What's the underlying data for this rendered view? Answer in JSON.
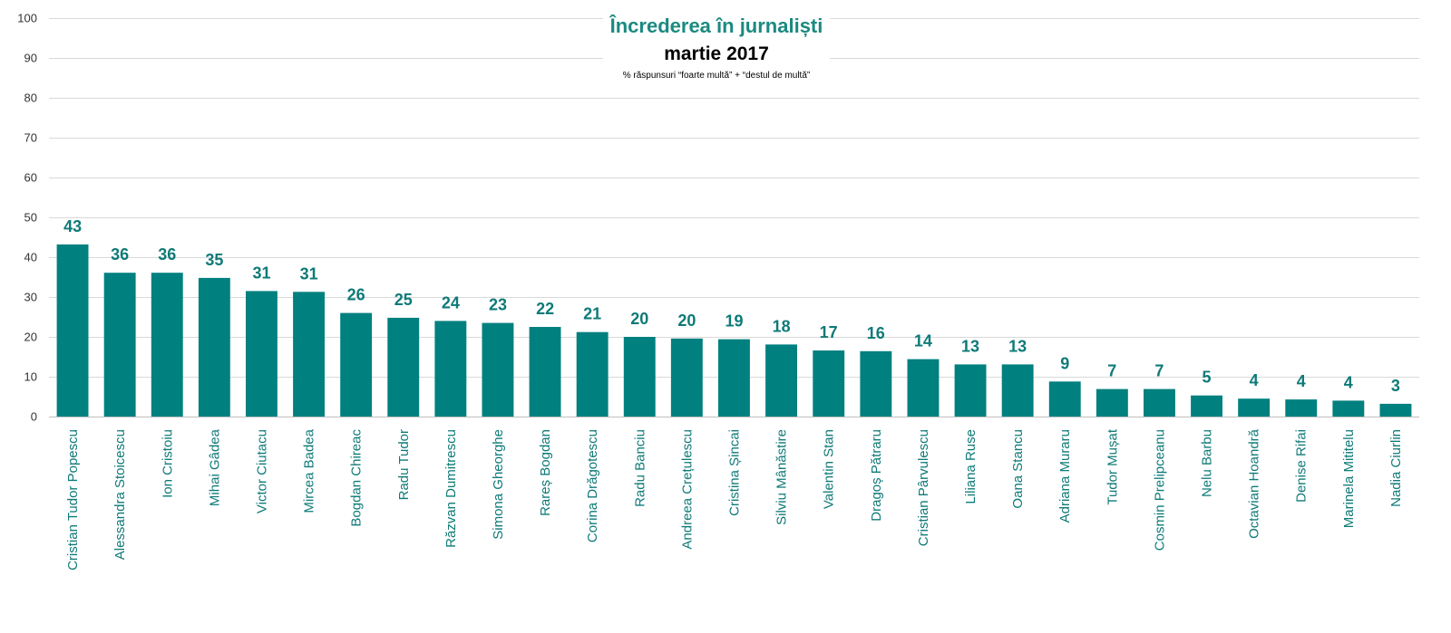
{
  "chart_data": {
    "type": "bar",
    "title": "Încrederea în jurnaliști",
    "subtitle": "martie 2017",
    "note": "% răspunsuri “foarte multă” + “destul de multă”",
    "ylim": [
      0,
      100
    ],
    "yticks": [
      0,
      10,
      20,
      30,
      40,
      50,
      60,
      70,
      80,
      90,
      100
    ],
    "grid": true,
    "colors": {
      "bar": "#00807F",
      "label": "#0E7A78",
      "title": "#1B8A80"
    },
    "categories": [
      "Cristian Tudor Popescu",
      "Alessandra Stoicescu",
      "Ion Cristoiu",
      "Mihai Gâdea",
      "Victor Ciutacu",
      "Mircea Badea",
      "Bogdan Chireac",
      "Radu Tudor",
      "Răzvan Dumitrescu",
      "Simona Gheorghe",
      "Rareș Bogdan",
      "Corina Drăgotescu",
      "Radu Banciu",
      "Andreea Crețulescu",
      "Cristina Șincai",
      "Silviu Mânăstire",
      "Valentin Stan",
      "Dragoș Pătraru",
      "Cristian Pârvulescu",
      "Liliana Ruse",
      "Oana Stancu",
      "Adriana Muraru",
      "Tudor Mușat",
      "Cosmin Prelipceanu",
      "Nelu Barbu",
      "Octavian Hoandră",
      "Denise Rifai",
      "Marinela Mititelu",
      "Nadia Ciurlin"
    ],
    "values": [
      43.2,
      36.1,
      36.1,
      34.8,
      31.5,
      31.3,
      26.0,
      24.8,
      24.0,
      23.5,
      22.5,
      21.2,
      20.0,
      19.6,
      19.4,
      18.1,
      16.6,
      16.4,
      14.4,
      13.1,
      13.1,
      8.8,
      6.9,
      6.9,
      5.3,
      4.5,
      4.3,
      4.0,
      3.2
    ],
    "data_labels": [
      "43",
      "36",
      "36",
      "35",
      "31",
      "31",
      "26",
      "25",
      "24",
      "23",
      "22",
      "21",
      "20",
      "20",
      "19",
      "18",
      "17",
      "16",
      "14",
      "13",
      "13",
      "9",
      "7",
      "7",
      "5",
      "4",
      "4",
      "4",
      "3"
    ]
  }
}
